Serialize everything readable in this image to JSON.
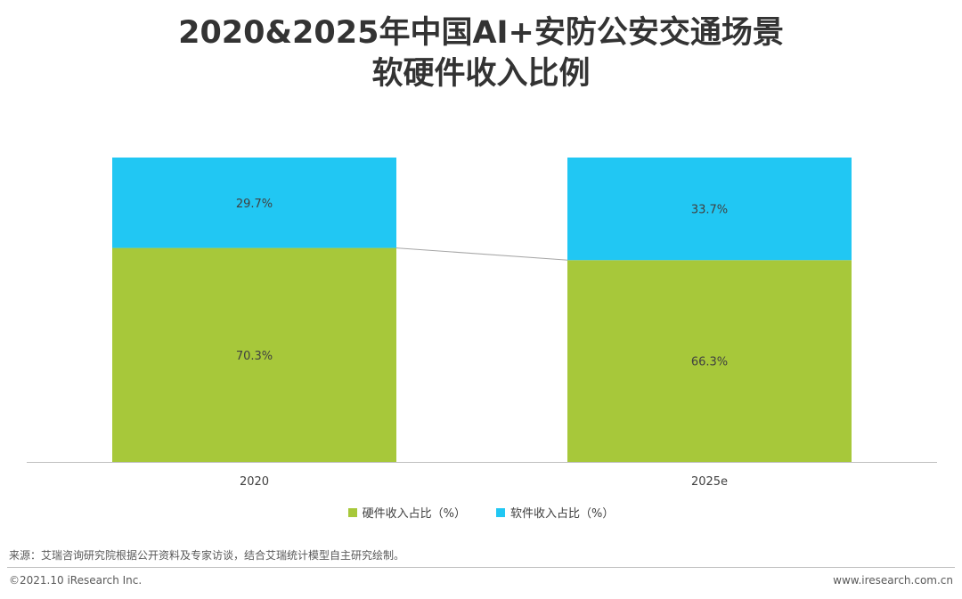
{
  "title": {
    "line1": "2020&2025年中国AI+安防公安交通场景",
    "line2": "软硬件收入比例"
  },
  "chart_data": {
    "type": "bar",
    "stacked": true,
    "categories": [
      "2020",
      "2025e"
    ],
    "series": [
      {
        "name": "硬件收入占比（%）",
        "values": [
          70.3,
          66.3
        ],
        "labels": [
          "70.3%",
          "66.3%"
        ],
        "color": "#a7c83a"
      },
      {
        "name": "软件收入占比（%）",
        "values": [
          29.7,
          33.7
        ],
        "labels": [
          "29.7%",
          "33.7%"
        ],
        "color": "#21c7f3"
      }
    ],
    "ylim": [
      0,
      100
    ],
    "legend_position": "bottom",
    "grid": false,
    "connector_line": true
  },
  "legend": {
    "hardware": "硬件收入占比（%）",
    "software": "软件收入占比（%）"
  },
  "footer": {
    "source": "来源：艾瑞咨询研究院根据公开资料及专家访谈，结合艾瑞统计模型自主研究绘制。",
    "copyright": "©2021.10 iResearch Inc.",
    "website": "www.iresearch.com.cn"
  }
}
